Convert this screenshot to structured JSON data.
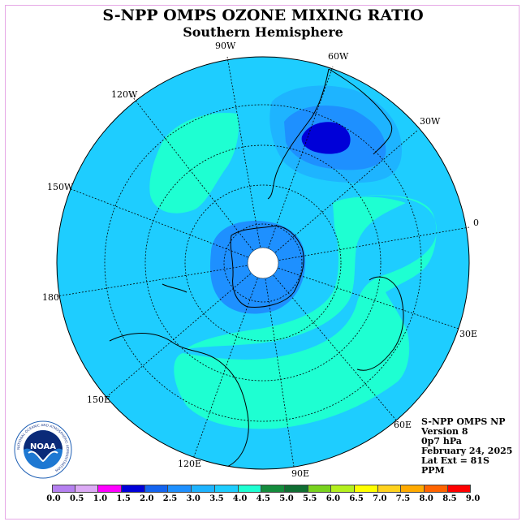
{
  "title": "S-NPP OMPS OZONE MIXING RATIO",
  "subtitle": "Southern Hemisphere",
  "longitude_labels": [
    {
      "text": "90W"
    },
    {
      "text": "60W"
    },
    {
      "text": "30W"
    },
    {
      "text": "0"
    },
    {
      "text": "30E"
    },
    {
      "text": "60E"
    },
    {
      "text": "90E"
    },
    {
      "text": "120E"
    },
    {
      "text": "150E"
    },
    {
      "text": "180"
    },
    {
      "text": "150W"
    },
    {
      "text": "120W"
    }
  ],
  "info": {
    "line1": "S-NPP OMPS NP",
    "line2": "Version 8",
    "line3": "0p7 hPa",
    "line4": "February 24, 2025",
    "line5": "Lat Ext = 81S",
    "line6": "PPM"
  },
  "logo": {
    "text": "NOAA",
    "ring_text": "NATIONAL OCEANIC AND ATMOSPHERIC ADMINISTRATION"
  },
  "colorbar": {
    "labels": [
      "0.0",
      "0.5",
      "1.0",
      "1.5",
      "2.0",
      "2.5",
      "3.0",
      "3.5",
      "4.0",
      "4.5",
      "5.0",
      "5.5",
      "6.0",
      "6.5",
      "7.0",
      "7.5",
      "8.0",
      "8.5",
      "9.0"
    ],
    "colors": [
      "#b580f0",
      "#dcaaf5",
      "#ff00ff",
      "#0000d8",
      "#1464f0",
      "#1e90ff",
      "#1eb4ff",
      "#1ecdff",
      "#1effd2",
      "#148c3c",
      "#0f6e32",
      "#78d21e",
      "#b4f01e",
      "#ffff00",
      "#ffd21e",
      "#ffaa00",
      "#ff6400",
      "#ff0000",
      "#8c503c"
    ]
  },
  "colors": {
    "ocean_level": "#1ecdff",
    "high_band": "#1effd2",
    "low_1": "#1eb4ff",
    "low_2": "#1e90ff",
    "low_3": "#1464f0",
    "min": "#0000d8",
    "missing": "#ffffff"
  }
}
